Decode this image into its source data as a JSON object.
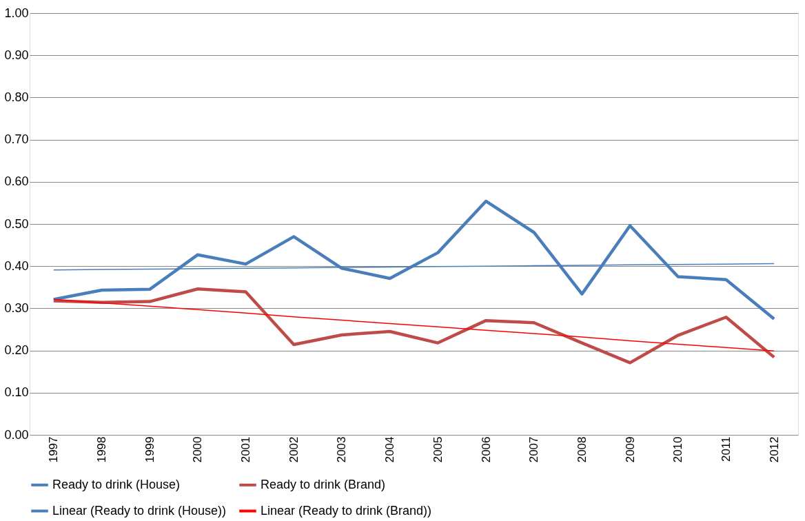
{
  "chart_data": {
    "type": "line",
    "categories": [
      "1997",
      "1998",
      "1999",
      "2000",
      "2001",
      "2002",
      "2003",
      "2004",
      "2005",
      "2006",
      "2007",
      "2008",
      "2009",
      "2010",
      "2011",
      "2012"
    ],
    "series": [
      {
        "name": "Ready to drink (House)",
        "color": "#4a7ebb",
        "values": [
          0.321,
          0.343,
          0.345,
          0.427,
          0.405,
          0.47,
          0.395,
          0.371,
          0.432,
          0.554,
          0.48,
          0.334,
          0.496,
          0.375,
          0.368,
          0.275
        ]
      },
      {
        "name": "Ready to drink (Brand)",
        "color": "#be4b48",
        "values": [
          0.318,
          0.314,
          0.316,
          0.346,
          0.339,
          0.214,
          0.237,
          0.245,
          0.218,
          0.271,
          0.266,
          0.218,
          0.171,
          0.236,
          0.279,
          0.184
        ]
      },
      {
        "name": "Linear (Ready to drink (House))",
        "color": "#4a7ebb",
        "type": "line",
        "values": [
          0.391,
          0.392,
          0.393,
          0.394,
          0.395,
          0.396,
          0.397,
          0.398,
          0.399,
          0.4,
          0.401,
          0.402,
          0.403,
          0.404,
          0.405,
          0.406
        ]
      },
      {
        "name": "Linear (Ready to drink (Brand))",
        "color": "#ff0000",
        "type": "line",
        "values": [
          0.321,
          0.313,
          0.305,
          0.297,
          0.289,
          0.28,
          0.272,
          0.264,
          0.256,
          0.248,
          0.24,
          0.232,
          0.223,
          0.215,
          0.207,
          0.199
        ]
      }
    ],
    "ylim": [
      0,
      1
    ],
    "yticks": [
      {
        "value": 0,
        "label": "0.00"
      },
      {
        "value": 0.1,
        "label": "0.10"
      },
      {
        "value": 0.2,
        "label": "0.20"
      },
      {
        "value": 0.3,
        "label": "0.30"
      },
      {
        "value": 0.4,
        "label": "0.40"
      },
      {
        "value": 0.5,
        "label": "0.50"
      },
      {
        "value": 0.6,
        "label": "0.60"
      },
      {
        "value": 0.7,
        "label": "0.70"
      },
      {
        "value": 0.8,
        "label": "0.80"
      },
      {
        "value": 0.9,
        "label": "0.90"
      },
      {
        "value": 1,
        "label": "1.00"
      }
    ],
    "grid": "y",
    "legend": "bottom",
    "marker": "none",
    "line_style": "solid"
  }
}
